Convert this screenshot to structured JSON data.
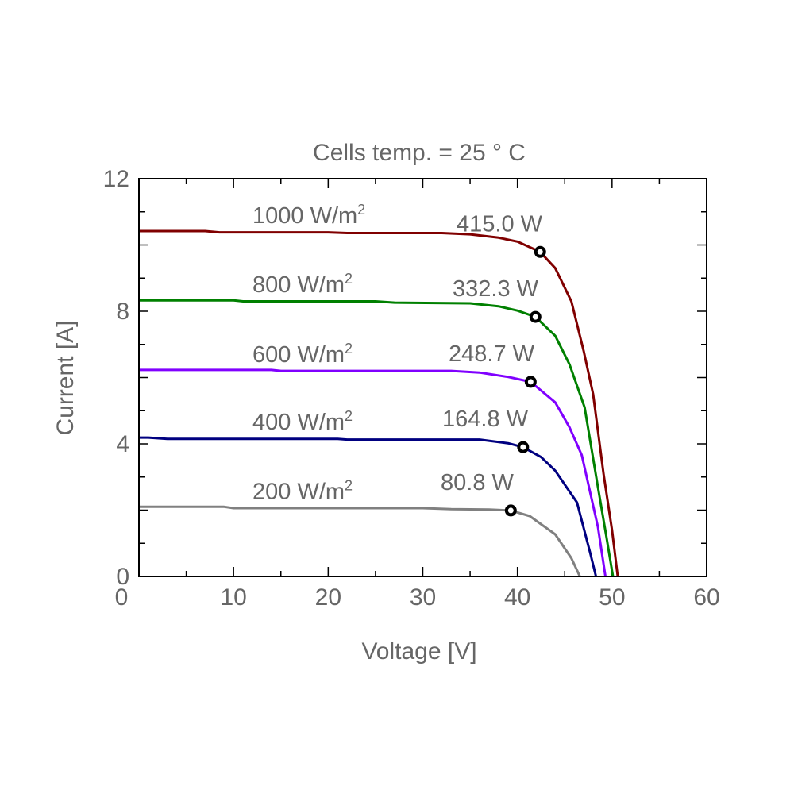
{
  "chart_data": {
    "type": "line",
    "title": "Cells temp. = 25 ° C",
    "xlabel": "Voltage [V]",
    "ylabel": "Current [A]",
    "xlim": [
      0,
      60
    ],
    "ylim": [
      0,
      12
    ],
    "x_ticks": [
      0,
      10,
      20,
      30,
      40,
      50,
      60
    ],
    "y_ticks": [
      0,
      4,
      8,
      12
    ],
    "grid": false,
    "series": [
      {
        "name": "1000 W/m²",
        "power_label": "415.0 W",
        "color": "#800000",
        "mpp": [
          42.4,
          9.79
        ],
        "points": [
          [
            0,
            10.42
          ],
          [
            7,
            10.42
          ],
          [
            8.5,
            10.38
          ],
          [
            20,
            10.38
          ],
          [
            22,
            10.36
          ],
          [
            32,
            10.36
          ],
          [
            35,
            10.32
          ],
          [
            38,
            10.22
          ],
          [
            40,
            10.1
          ],
          [
            42.4,
            9.79
          ],
          [
            44,
            9.3
          ],
          [
            45.7,
            8.3
          ],
          [
            47,
            6.8
          ],
          [
            48,
            5.5
          ],
          [
            49.1,
            3.1
          ],
          [
            50,
            1.4
          ],
          [
            50.6,
            0
          ]
        ]
      },
      {
        "name": "800 W/m²",
        "power_label": "332.3 W",
        "color": "#008000",
        "mpp": [
          41.9,
          7.83
        ],
        "points": [
          [
            0,
            8.33
          ],
          [
            10,
            8.33
          ],
          [
            11,
            8.3
          ],
          [
            25,
            8.3
          ],
          [
            27,
            8.26
          ],
          [
            35,
            8.24
          ],
          [
            38,
            8.15
          ],
          [
            40,
            8.02
          ],
          [
            41.9,
            7.83
          ],
          [
            44,
            7.26
          ],
          [
            45.5,
            6.4
          ],
          [
            47.1,
            5.1
          ],
          [
            48.5,
            2.7
          ],
          [
            49.4,
            1.2
          ],
          [
            50.1,
            0
          ]
        ]
      },
      {
        "name": "600 W/m²",
        "power_label": "248.7 W",
        "color": "#8000ff",
        "mpp": [
          41.4,
          5.87
        ],
        "points": [
          [
            0,
            6.23
          ],
          [
            14,
            6.23
          ],
          [
            15,
            6.2
          ],
          [
            33,
            6.2
          ],
          [
            36,
            6.15
          ],
          [
            39,
            6.02
          ],
          [
            41.4,
            5.87
          ],
          [
            44,
            5.25
          ],
          [
            45.5,
            4.5
          ],
          [
            46.8,
            3.66
          ],
          [
            48.5,
            1.5
          ],
          [
            49.3,
            0
          ]
        ]
      },
      {
        "name": "400 W/m²",
        "power_label": "164.8 W",
        "color": "#000080",
        "mpp": [
          40.6,
          3.9
        ],
        "points": [
          [
            0,
            4.19
          ],
          [
            1,
            4.19
          ],
          [
            3,
            4.15
          ],
          [
            21,
            4.15
          ],
          [
            22,
            4.13
          ],
          [
            36,
            4.13
          ],
          [
            39,
            4.02
          ],
          [
            40.6,
            3.9
          ],
          [
            42.5,
            3.6
          ],
          [
            44,
            3.19
          ],
          [
            46.3,
            2.23
          ],
          [
            47.7,
            0.7
          ],
          [
            48.3,
            0
          ]
        ]
      },
      {
        "name": "200 W/m²",
        "power_label": "80.8 W",
        "color": "#808080",
        "mpp": [
          39.3,
          1.99
        ],
        "points": [
          [
            0,
            2.1
          ],
          [
            9,
            2.1
          ],
          [
            10,
            2.06
          ],
          [
            30,
            2.06
          ],
          [
            33,
            2.03
          ],
          [
            37,
            2.02
          ],
          [
            39.3,
            1.99
          ],
          [
            41.3,
            1.82
          ],
          [
            44,
            1.27
          ],
          [
            45.7,
            0.55
          ],
          [
            46.6,
            0
          ]
        ]
      }
    ]
  }
}
